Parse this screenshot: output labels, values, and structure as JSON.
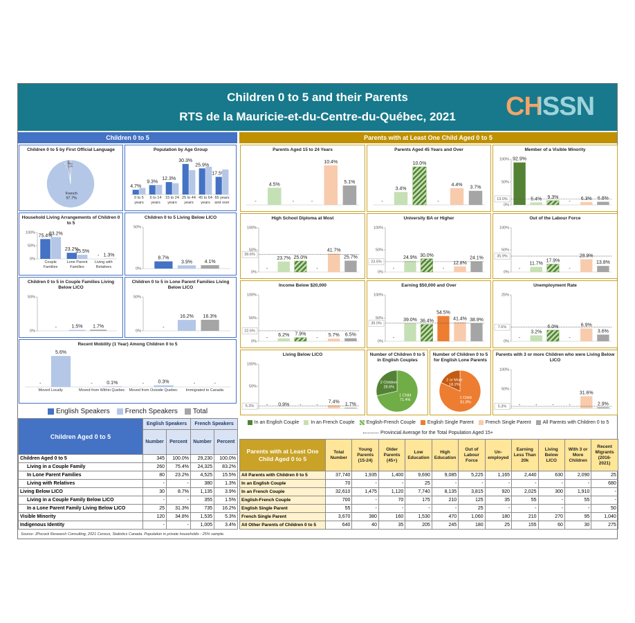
{
  "header": {
    "title": "Children 0 to 5 and their Parents",
    "subtitle": "RTS de la Mauricie-et-du-Centre-du-Québec, 2021",
    "logo": "CHSSN"
  },
  "left_section": "Children 0 to 5",
  "right_section": "Parents with at Least One Child Aged 0 to 5",
  "left_legend": {
    "series": [
      {
        "name": "English Speakers",
        "color": "#4472c4"
      },
      {
        "name": "French Speakers",
        "color": "#b4c7e7"
      },
      {
        "name": "Total",
        "color": "#a5a5a5"
      }
    ]
  },
  "parents_legend": {
    "series": [
      {
        "name": "In an English Couple",
        "color": "#548235"
      },
      {
        "name": "In an French Couple",
        "color": "#c5e0b4"
      },
      {
        "name": "English-French Couple",
        "color": "#70ad47",
        "pattern": "hatch"
      },
      {
        "name": "English Single Parent",
        "color": "#ed7d31"
      },
      {
        "name": "French Single Parent",
        "color": "#f8cbad"
      },
      {
        "name": "All Parents with Children 0 to 5",
        "color": "#a5a5a5"
      }
    ],
    "average_line": "Provincial Average for the Total Population Aged 15+"
  },
  "chart_data": [
    {
      "type": "pie",
      "title": "Children 0 to 5 by First Official Language",
      "categories": [
        "French",
        "English",
        "Other"
      ],
      "values": [
        97.7,
        1.2,
        1.1
      ],
      "value_labels": [
        "97.7%",
        "1.2%",
        "1.1%"
      ],
      "colors": [
        "#b4c7e7",
        "#4472c4",
        "#a5a5a5"
      ]
    },
    {
      "type": "bar",
      "title": "Population by Age Group",
      "categories": [
        "0 to 5 years",
        "6 to 14 years",
        "15 to 24 years",
        "25 to 44 years",
        "45 to 64 years",
        "65 years and over"
      ],
      "ylim": [
        0,
        35
      ],
      "series": [
        {
          "values": [
            4.7,
            9.3,
            12.3,
            30.3,
            25.9,
            17.5
          ],
          "value_labels": [
            "4.7%",
            "9.3%",
            "12.3%",
            "30.3%",
            "25.9%",
            "17.5%"
          ]
        },
        {
          "values": [
            6.5,
            9.6,
            11.2,
            24.2,
            27.6,
            24.8
          ]
        }
      ]
    },
    {
      "type": "bar",
      "title": "Household Living Arrangements of Children 0 to 5",
      "categories": [
        "Couple Families",
        "Lone Parent Families",
        "Living with Relatives"
      ],
      "ylim": [
        0,
        100
      ],
      "yticks": [
        {
          "value": 0,
          "label": "0%"
        },
        {
          "value": 50,
          "label": "50%"
        },
        {
          "value": 100,
          "label": "100%"
        }
      ],
      "series": [
        {
          "values": [
            75.4,
            23.2,
            null
          ],
          "value_labels": [
            "75.4%",
            "23.2%",
            "-"
          ]
        },
        {
          "values": [
            83.2,
            15.5,
            1.3
          ],
          "value_labels": [
            "83.2%",
            "15.5%",
            "1.3%"
          ]
        }
      ]
    },
    {
      "type": "bar",
      "title": "Children 0 to 5 Living Below LICO",
      "ylim": [
        0,
        50
      ],
      "yticks": [
        {
          "value": 0,
          "label": "0%"
        },
        {
          "value": 50,
          "label": "50%"
        }
      ],
      "series": [
        {
          "values": [
            8.7
          ],
          "value_labels": [
            "8.7%"
          ]
        },
        {
          "values": [
            3.9
          ],
          "value_labels": [
            "3.9%"
          ]
        },
        {
          "values": [
            4.1
          ],
          "value_labels": [
            "4.1%"
          ]
        }
      ]
    },
    {
      "type": "bar",
      "title": "Children 0 to 5 in Couple Families Living Below LICO",
      "ylim": [
        0,
        50
      ],
      "yticks": [
        {
          "value": 0,
          "label": "0%"
        },
        {
          "value": 50,
          "label": "50%"
        }
      ],
      "series": [
        {
          "values": [
            null
          ],
          "value_labels": [
            "-"
          ]
        },
        {
          "values": [
            1.5
          ],
          "value_labels": [
            "1.5%"
          ]
        },
        {
          "values": [
            1.7
          ],
          "value_labels": [
            "1.7%"
          ]
        }
      ]
    },
    {
      "type": "bar",
      "title": "Children 0 to 5 in Lone Parent Families Living Below LICO",
      "ylim": [
        0,
        50
      ],
      "yticks": [
        {
          "value": 0,
          "label": "0%"
        },
        {
          "value": 50,
          "label": "50%"
        }
      ],
      "series": [
        {
          "values": [
            null
          ],
          "value_labels": [
            "-"
          ]
        },
        {
          "values": [
            16.2
          ],
          "value_labels": [
            "16.2%"
          ]
        },
        {
          "values": [
            16.3
          ],
          "value_labels": [
            "16.3%"
          ]
        }
      ]
    },
    {
      "type": "bar",
      "title": "Recent Mobility (1 Year) Among Children 0 to 5",
      "categories": [
        "Moved Locally",
        "Moved from Within Quebec",
        "Moved from Outside Quebec",
        "Immigrated to Canada"
      ],
      "ylim": [
        0,
        6
      ],
      "series": [
        {
          "values": [
            null,
            null,
            null,
            null
          ],
          "value_labels": [
            "-",
            "-",
            "-",
            "-"
          ]
        },
        {
          "values": [
            5.6,
            0.1,
            0.3,
            null
          ],
          "value_labels": [
            "5.6%",
            "0.1%",
            "0.3%",
            "-"
          ]
        }
      ]
    },
    {
      "type": "bar",
      "title": "Parents Aged 15 to 24 Years",
      "ylim": [
        0,
        12
      ],
      "values": [
        null,
        4.5,
        null,
        null,
        10.4,
        5.1
      ],
      "value_labels": [
        "-",
        "4.5%",
        "-",
        "-",
        "10.4%",
        "5.1%"
      ]
    },
    {
      "type": "bar",
      "title": "Parents Aged 45 Years and Over",
      "ylim": [
        0,
        12
      ],
      "values": [
        null,
        3.4,
        10.0,
        null,
        4.4,
        3.7
      ],
      "value_labels": [
        "-",
        "3.4%",
        "10.0%",
        "-",
        "4.4%",
        "3.7%"
      ]
    },
    {
      "type": "bar",
      "title": "Member of a Visible Minority",
      "ylim": [
        0,
        100
      ],
      "yticks": [
        {
          "value": 0,
          "label": "0%"
        },
        {
          "value": 50,
          "label": "50%"
        },
        {
          "value": 100,
          "label": "100%"
        }
      ],
      "average": 13.0,
      "average_label": "13.0%",
      "values": [
        92.9,
        5.4,
        9.3,
        null,
        6.3,
        6.8
      ],
      "value_labels": [
        "92.9%",
        "5.4%",
        "9.3%",
        "-",
        "6.3%",
        "6.8%"
      ]
    },
    {
      "type": "bar",
      "title": "High School Diploma at Most",
      "ylim": [
        0,
        100
      ],
      "yticks": [
        {
          "value": 0,
          "label": "0%"
        },
        {
          "value": 50,
          "label": "50%"
        },
        {
          "value": 100,
          "label": "100%"
        }
      ],
      "average": 39.6,
      "average_label": "39.6%",
      "values": [
        null,
        23.7,
        25.0,
        null,
        41.7,
        25.7
      ],
      "value_labels": [
        "-",
        "23.7%",
        "25.0%",
        "-",
        "41.7%",
        "25.7%"
      ]
    },
    {
      "type": "bar",
      "title": "University BA or Higher",
      "ylim": [
        0,
        100
      ],
      "yticks": [
        {
          "value": 0,
          "label": "0%"
        },
        {
          "value": 50,
          "label": "50%"
        },
        {
          "value": 100,
          "label": "100%"
        }
      ],
      "average": 23.5,
      "average_label": "23.5%",
      "values": [
        null,
        24.9,
        30.0,
        null,
        12.8,
        24.1
      ],
      "value_labels": [
        "-",
        "24.9%",
        "30.0%",
        "-",
        "12.8%",
        "24.1%"
      ]
    },
    {
      "type": "bar",
      "title": "Out of the Labour Force",
      "ylim": [
        0,
        100
      ],
      "yticks": [
        {
          "value": 0,
          "label": "0%"
        },
        {
          "value": 50,
          "label": "50%"
        },
        {
          "value": 100,
          "label": "100%"
        }
      ],
      "average": 35.9,
      "average_label": "35.9%",
      "values": [
        null,
        11.7,
        17.9,
        null,
        28.9,
        13.8
      ],
      "value_labels": [
        "-",
        "11.7%",
        "17.9%",
        "-",
        "28.9%",
        "13.8%"
      ]
    },
    {
      "type": "bar",
      "title": "Income Below $20,000",
      "ylim": [
        0,
        100
      ],
      "yticks": [
        {
          "value": 0,
          "label": "0%"
        },
        {
          "value": 50,
          "label": "50%"
        },
        {
          "value": 100,
          "label": "100%"
        }
      ],
      "average": 22.6,
      "average_label": "22.6%",
      "values": [
        null,
        6.2,
        7.9,
        null,
        5.7,
        6.5
      ],
      "value_labels": [
        "-",
        "6.2%",
        "7.9%",
        "-",
        "5.7%",
        "6.5%"
      ]
    },
    {
      "type": "bar",
      "title": "Earning $50,000 and Over",
      "ylim": [
        0,
        100
      ],
      "yticks": [
        {
          "value": 0,
          "label": "0%"
        },
        {
          "value": 50,
          "label": "50%"
        },
        {
          "value": 100,
          "label": "100%"
        }
      ],
      "average": 39.0,
      "average_label": "39.0%",
      "values": [
        null,
        39.0,
        36.4,
        54.5,
        41.4,
        38.9
      ],
      "value_labels": [
        "-",
        "39.0%",
        "36.4%",
        "54.5%",
        "41.4%",
        "38.9%"
      ]
    },
    {
      "type": "bar",
      "title": "Unemployment Rate",
      "ylim": [
        0,
        25
      ],
      "yticks": [
        {
          "value": 0,
          "label": "0%"
        },
        {
          "value": 25,
          "label": "25%"
        }
      ],
      "average": 7.6,
      "average_label": "7.6%",
      "values": [
        null,
        3.2,
        6.0,
        null,
        6.9,
        3.6
      ],
      "value_labels": [
        "-",
        "3.2%",
        "6.0%",
        "-",
        "6.9%",
        "3.6%"
      ]
    },
    {
      "type": "bar",
      "title": "Living Below LICO",
      "ylim": [
        0,
        100
      ],
      "yticks": [
        {
          "value": 0,
          "label": "0%"
        },
        {
          "value": 50,
          "label": "50%"
        },
        {
          "value": 100,
          "label": "100%"
        }
      ],
      "average": 5.3,
      "average_label": "5.3%",
      "values": [
        null,
        0.9,
        null,
        null,
        7.4,
        1.7
      ],
      "value_labels": [
        "-",
        "0.9%",
        "-",
        "-",
        "7.4%",
        "1.7%"
      ]
    },
    {
      "type": "pie",
      "title": "Number of Children 0 to 5 in English Couples",
      "categories": [
        "1 Child",
        "2 Children"
      ],
      "values": [
        71.4,
        28.6
      ],
      "value_labels": [
        "71.4%",
        "28.6%"
      ],
      "colors": [
        "#70ad47",
        "#548235"
      ]
    },
    {
      "type": "pie",
      "title": "Number of Children 0 to 5 for English Lone Parents",
      "categories": [
        "1 Child",
        "2 or More"
      ],
      "values": [
        81.8,
        18.2
      ],
      "value_labels": [
        "81.8%",
        "18.2%"
      ],
      "colors": [
        "#ed7d31",
        "#c55a11"
      ]
    },
    {
      "type": "bar",
      "title": "Parents with 3 or more Children who were Living Below LICO",
      "ylim": [
        0,
        100
      ],
      "yticks": [
        {
          "value": 0,
          "label": "0%"
        },
        {
          "value": 50,
          "label": "50%"
        },
        {
          "value": 100,
          "label": "100%"
        }
      ],
      "average": 5.3,
      "average_label": "5.3%",
      "values": [
        null,
        null,
        null,
        null,
        31.6,
        2.9
      ],
      "value_labels": [
        "-",
        "-",
        "-",
        "-",
        "31.6%",
        "2.9%"
      ]
    }
  ],
  "children_table": {
    "title": "Children Aged 0 to 5",
    "groups": [
      "English Speakers",
      "French Speakers"
    ],
    "subheaders": [
      "Number",
      "Percent",
      "Number",
      "Percent"
    ],
    "rows": [
      [
        "Children Aged 0 to 5",
        "345",
        "100.0%",
        "29,230",
        "100.0%"
      ],
      [
        "Living in a Couple Family",
        "260",
        "75.4%",
        "24,325",
        "83.2%"
      ],
      [
        "In Lone Parent Families",
        "80",
        "23.2%",
        "4,525",
        "15.5%"
      ],
      [
        "Living with Relatives",
        "-",
        "-",
        "380",
        "1.3%"
      ],
      [
        "Living Below LICO",
        "30",
        "8.7%",
        "1,135",
        "3.9%"
      ],
      [
        "Living in a Couple Family Below LICO",
        "-",
        "-",
        "355",
        "1.5%"
      ],
      [
        "In a Lone Parent Family Living Below LICO",
        "25",
        "31.3%",
        "735",
        "16.2%"
      ],
      [
        "Visible Minority",
        "120",
        "34.8%",
        "1,535",
        "5.3%"
      ],
      [
        "Indigenous Identity",
        "-",
        "-",
        "1,005",
        "3.4%"
      ]
    ]
  },
  "parents_table": {
    "headers": [
      "Parents with at Least One Child Aged 0 to 5",
      "Total Number",
      "Young Parents (15-24)",
      "Older Parents (45+)",
      "Low Education",
      "High Education",
      "Out of Labour Force",
      "Un-employed",
      "Earning Less Than 20k",
      "Living Below LICO",
      "With 3 or More Children",
      "Recent Migrants (2016-2021)"
    ],
    "rows": [
      [
        "All Parents with Children 0 to 5",
        "37,740",
        "1,935",
        "1,400",
        "9,690",
        "9,085",
        "5,225",
        "1,165",
        "2,440",
        "630",
        "2,090",
        "25"
      ],
      [
        "In an English Couple",
        "70",
        "-",
        "-",
        "25",
        "-",
        "-",
        "-",
        "-",
        "-",
        "-",
        "680"
      ],
      [
        "In an French Couple",
        "32,610",
        "1,475",
        "1,120",
        "7,740",
        "8,135",
        "3,815",
        "920",
        "2,025",
        "300",
        "1,910",
        "-"
      ],
      [
        "English-French Couple",
        "700",
        "-",
        "70",
        "175",
        "210",
        "125",
        "35",
        "55",
        "-",
        "55",
        "-"
      ],
      [
        "English Single Parent",
        "55",
        "-",
        "-",
        "-",
        "-",
        "25",
        "-",
        "-",
        "-",
        "-",
        "50"
      ],
      [
        "French Single Parent",
        "3,670",
        "380",
        "160",
        "1,530",
        "470",
        "1,060",
        "180",
        "210",
        "270",
        "95",
        "1,040"
      ],
      [
        "All Other Parents of Children 0 to 5",
        "640",
        "40",
        "35",
        "205",
        "245",
        "180",
        "25",
        "155",
        "60",
        "30",
        "275"
      ]
    ]
  },
  "source": "Source: JPocock Research Consulting, 2021 Census, Statistics Canada. Population in private households - 25% sample."
}
